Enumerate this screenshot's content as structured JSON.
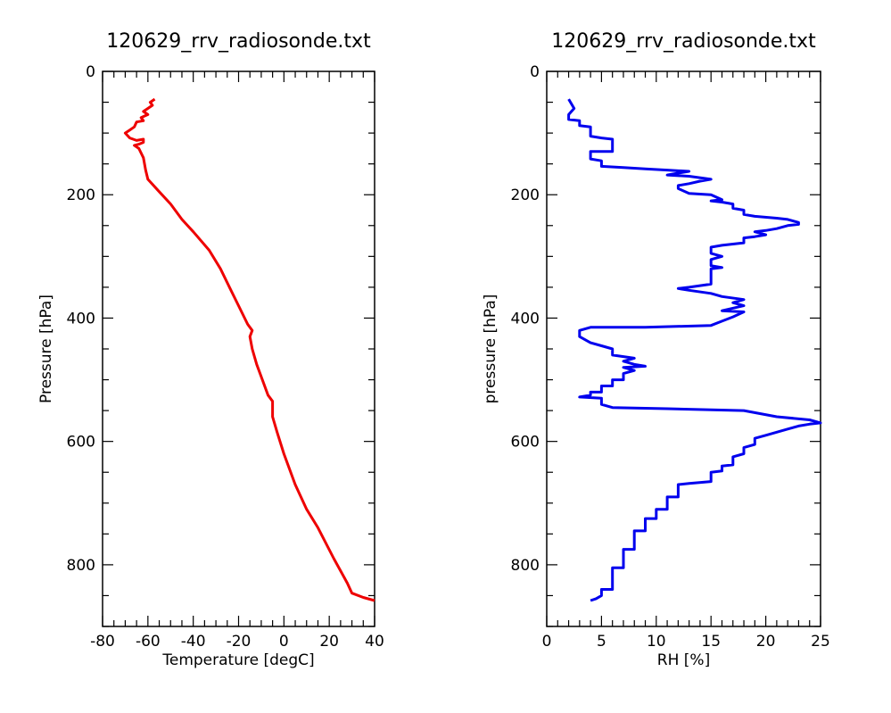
{
  "chart_data": [
    {
      "type": "line",
      "title": "120629_rrv_radiosonde.txt",
      "xlabel": "Temperature [degC]",
      "ylabel": "Pressure [hPa]",
      "xlim": [
        -80,
        40
      ],
      "ylim": [
        900,
        0
      ],
      "x_ticks_major": [
        -80,
        -60,
        -40,
        -20,
        0,
        20,
        40
      ],
      "x_tick_labels": [
        "-80",
        "-60",
        "-40",
        "-20",
        "0",
        "20",
        "40"
      ],
      "x_ticks_minor_step": 5,
      "y_ticks_major": [
        0,
        200,
        400,
        600,
        800
      ],
      "y_tick_labels": [
        "0",
        "200",
        "400",
        "600",
        "800"
      ],
      "y_ticks_minor_step": 50,
      "grid": false,
      "color": "#ee0000",
      "series": [
        {
          "points": [
            [
              40,
              858
            ],
            [
              35,
              853
            ],
            [
              30,
              846
            ],
            [
              28,
              830
            ],
            [
              22,
              790
            ],
            [
              15,
              740
            ],
            [
              10,
              710
            ],
            [
              5,
              670
            ],
            [
              0,
              620
            ],
            [
              -3,
              585
            ],
            [
              -5,
              560
            ],
            [
              -5,
              535
            ],
            [
              -7,
              525
            ],
            [
              -10,
              495
            ],
            [
              -12,
              475
            ],
            [
              -14,
              450
            ],
            [
              -15,
              430
            ],
            [
              -14,
              420
            ],
            [
              -16,
              410
            ],
            [
              -20,
              380
            ],
            [
              -24,
              350
            ],
            [
              -28,
              320
            ],
            [
              -33,
              290
            ],
            [
              -40,
              260
            ],
            [
              -45,
              240
            ],
            [
              -50,
              215
            ],
            [
              -55,
              195
            ],
            [
              -60,
              175
            ],
            [
              -61,
              160
            ],
            [
              -62,
              140
            ],
            [
              -64,
              125
            ],
            [
              -66,
              120
            ],
            [
              -64,
              118
            ],
            [
              -62,
              115
            ],
            [
              -62,
              110
            ],
            [
              -65,
              112
            ],
            [
              -68,
              108
            ],
            [
              -70,
              100
            ],
            [
              -68,
              95
            ],
            [
              -66,
              90
            ],
            [
              -65,
              82
            ],
            [
              -62,
              80
            ],
            [
              -63,
              75
            ],
            [
              -60,
              70
            ],
            [
              -62,
              65
            ],
            [
              -60,
              60
            ],
            [
              -58,
              55
            ],
            [
              -59,
              50
            ],
            [
              -57,
              45
            ]
          ]
        }
      ]
    },
    {
      "type": "line",
      "title": "120629_rrv_radiosonde.txt",
      "xlabel": "RH [%]",
      "ylabel": "pressure [hPa]",
      "xlim": [
        0,
        25
      ],
      "ylim": [
        900,
        0
      ],
      "x_ticks_major": [
        0,
        5,
        10,
        15,
        20,
        25
      ],
      "x_tick_labels": [
        "0",
        "5",
        "10",
        "15",
        "20",
        "25"
      ],
      "x_ticks_minor_step": 1,
      "y_ticks_major": [
        0,
        200,
        400,
        600,
        800
      ],
      "y_tick_labels": [
        "0",
        "200",
        "400",
        "600",
        "800"
      ],
      "y_ticks_minor_step": 50,
      "grid": false,
      "color": "#0000ee",
      "series": [
        {
          "points": [
            [
              4,
              858
            ],
            [
              4.5,
              855
            ],
            [
              5,
              850
            ],
            [
              5,
              840
            ],
            [
              6,
              840
            ],
            [
              6,
              805
            ],
            [
              7,
              805
            ],
            [
              7,
              775
            ],
            [
              8,
              775
            ],
            [
              8,
              745
            ],
            [
              9,
              745
            ],
            [
              9,
              725
            ],
            [
              10,
              725
            ],
            [
              10,
              710
            ],
            [
              11,
              710
            ],
            [
              11,
              690
            ],
            [
              12,
              690
            ],
            [
              12,
              670
            ],
            [
              13,
              668
            ],
            [
              15,
              665
            ],
            [
              15,
              650
            ],
            [
              16,
              648
            ],
            [
              16,
              640
            ],
            [
              17,
              638
            ],
            [
              17,
              625
            ],
            [
              18,
              620
            ],
            [
              18,
              610
            ],
            [
              19,
              605
            ],
            [
              19,
              595
            ],
            [
              20,
              590
            ],
            [
              21,
              585
            ],
            [
              22,
              580
            ],
            [
              23,
              575
            ],
            [
              24,
              572
            ],
            [
              25,
              570
            ],
            [
              24,
              565
            ],
            [
              21,
              560
            ],
            [
              18,
              550
            ],
            [
              11,
              547
            ],
            [
              6,
              545
            ],
            [
              5,
              540
            ],
            [
              5,
              530
            ],
            [
              3,
              528
            ],
            [
              4,
              525
            ],
            [
              4,
              520
            ],
            [
              5,
              520
            ],
            [
              5,
              510
            ],
            [
              6,
              510
            ],
            [
              6,
              500
            ],
            [
              7,
              500
            ],
            [
              7,
              490
            ],
            [
              8,
              485
            ],
            [
              7,
              480
            ],
            [
              9,
              478
            ],
            [
              8,
              475
            ],
            [
              7,
              470
            ],
            [
              8,
              465
            ],
            [
              6,
              460
            ],
            [
              6,
              450
            ],
            [
              5,
              445
            ],
            [
              4,
              440
            ],
            [
              3,
              430
            ],
            [
              3,
              420
            ],
            [
              4,
              415
            ],
            [
              9,
              415
            ],
            [
              15,
              412
            ],
            [
              16,
              405
            ],
            [
              17,
              398
            ],
            [
              18,
              390
            ],
            [
              16,
              388
            ],
            [
              18,
              380
            ],
            [
              17,
              375
            ],
            [
              18,
              370
            ],
            [
              16,
              365
            ],
            [
              15,
              360
            ],
            [
              13,
              355
            ],
            [
              12,
              352
            ],
            [
              13,
              350
            ],
            [
              15,
              345
            ],
            [
              15,
              320
            ],
            [
              16,
              318
            ],
            [
              15,
              315
            ],
            [
              15,
              305
            ],
            [
              16,
              300
            ],
            [
              15,
              295
            ],
            [
              15,
              285
            ],
            [
              16,
              282
            ],
            [
              17,
              280
            ],
            [
              18,
              278
            ],
            [
              18,
              270
            ],
            [
              19,
              268
            ],
            [
              20,
              265
            ],
            [
              19,
              260
            ],
            [
              20,
              258
            ],
            [
              21,
              255
            ],
            [
              22,
              250
            ],
            [
              23,
              248
            ],
            [
              23,
              245
            ],
            [
              22,
              240
            ],
            [
              21,
              238
            ],
            [
              19,
              235
            ],
            [
              18,
              232
            ],
            [
              18,
              225
            ],
            [
              17,
              222
            ],
            [
              17,
              215
            ],
            [
              16,
              212
            ],
            [
              15,
              210
            ],
            [
              16,
              208
            ],
            [
              15,
              200
            ],
            [
              13,
              198
            ],
            [
              12,
              190
            ],
            [
              12,
              185
            ],
            [
              13,
              182
            ],
            [
              14,
              178
            ],
            [
              15,
              175
            ],
            [
              13,
              170
            ],
            [
              11,
              168
            ],
            [
              12,
              165
            ],
            [
              13,
              162
            ],
            [
              11,
              160
            ],
            [
              9,
              158
            ],
            [
              7,
              156
            ],
            [
              5,
              154
            ],
            [
              5,
              145
            ],
            [
              4,
              142
            ],
            [
              4,
              130
            ],
            [
              6,
              130
            ],
            [
              6,
              110
            ],
            [
              5,
              108
            ],
            [
              4,
              105
            ],
            [
              4,
              90
            ],
            [
              3,
              88
            ],
            [
              3,
              80
            ],
            [
              2,
              78
            ],
            [
              2,
              70
            ],
            [
              2.5,
              60
            ],
            [
              2,
              45
            ]
          ]
        }
      ]
    }
  ]
}
